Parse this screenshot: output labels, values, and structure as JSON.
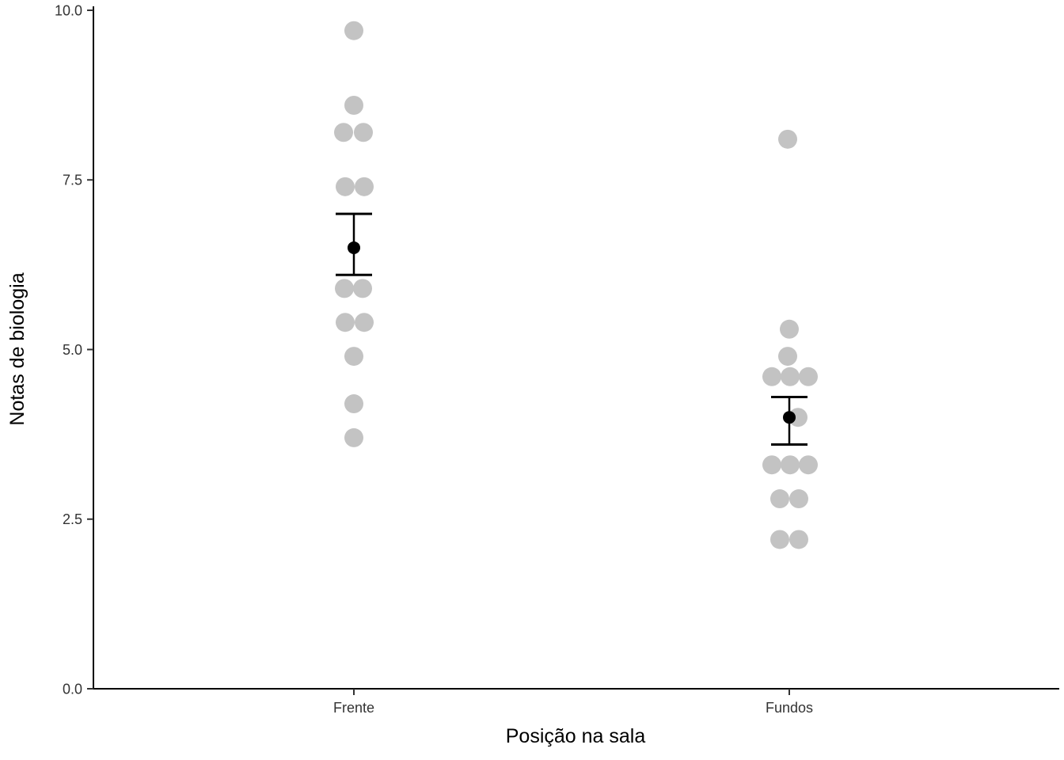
{
  "chart_data": {
    "type": "scatter",
    "title": "",
    "xlabel": "Posição na sala",
    "ylabel": "Notas de biologia",
    "ylim": [
      0,
      10
    ],
    "yticks": [
      0.0,
      2.5,
      5.0,
      7.5,
      10.0
    ],
    "ytick_labels": [
      "0.0",
      "2.5",
      "5.0",
      "7.5",
      "10.0"
    ],
    "categories": [
      "Frente",
      "Fundos"
    ],
    "series": [
      {
        "name": "Frente",
        "values": [
          9.7,
          8.6,
          8.2,
          8.2,
          7.4,
          7.4,
          5.9,
          5.9,
          5.4,
          5.4,
          4.9,
          4.2,
          3.7
        ],
        "mean": 6.5,
        "error_low": 6.1,
        "error_high": 7.0
      },
      {
        "name": "Fundos",
        "values": [
          8.1,
          5.3,
          4.9,
          4.6,
          4.6,
          4.6,
          4.0,
          3.3,
          3.3,
          3.3,
          2.8,
          2.8,
          2.2,
          2.2
        ],
        "mean": 4.0,
        "error_low": 3.6,
        "error_high": 4.3
      }
    ],
    "jitter_dx": [
      [
        0,
        0,
        -13,
        12,
        -11,
        13,
        -12,
        11,
        -11,
        13,
        0,
        0,
        0
      ],
      [
        -2,
        0,
        -2,
        -22,
        1,
        24,
        11,
        -22,
        1,
        24,
        -12,
        12,
        -12,
        12
      ]
    ],
    "grid": false,
    "legend_position": "none",
    "point_color": "#c3c3c3",
    "summary_color": "#000000",
    "axis_color": "#000000"
  }
}
